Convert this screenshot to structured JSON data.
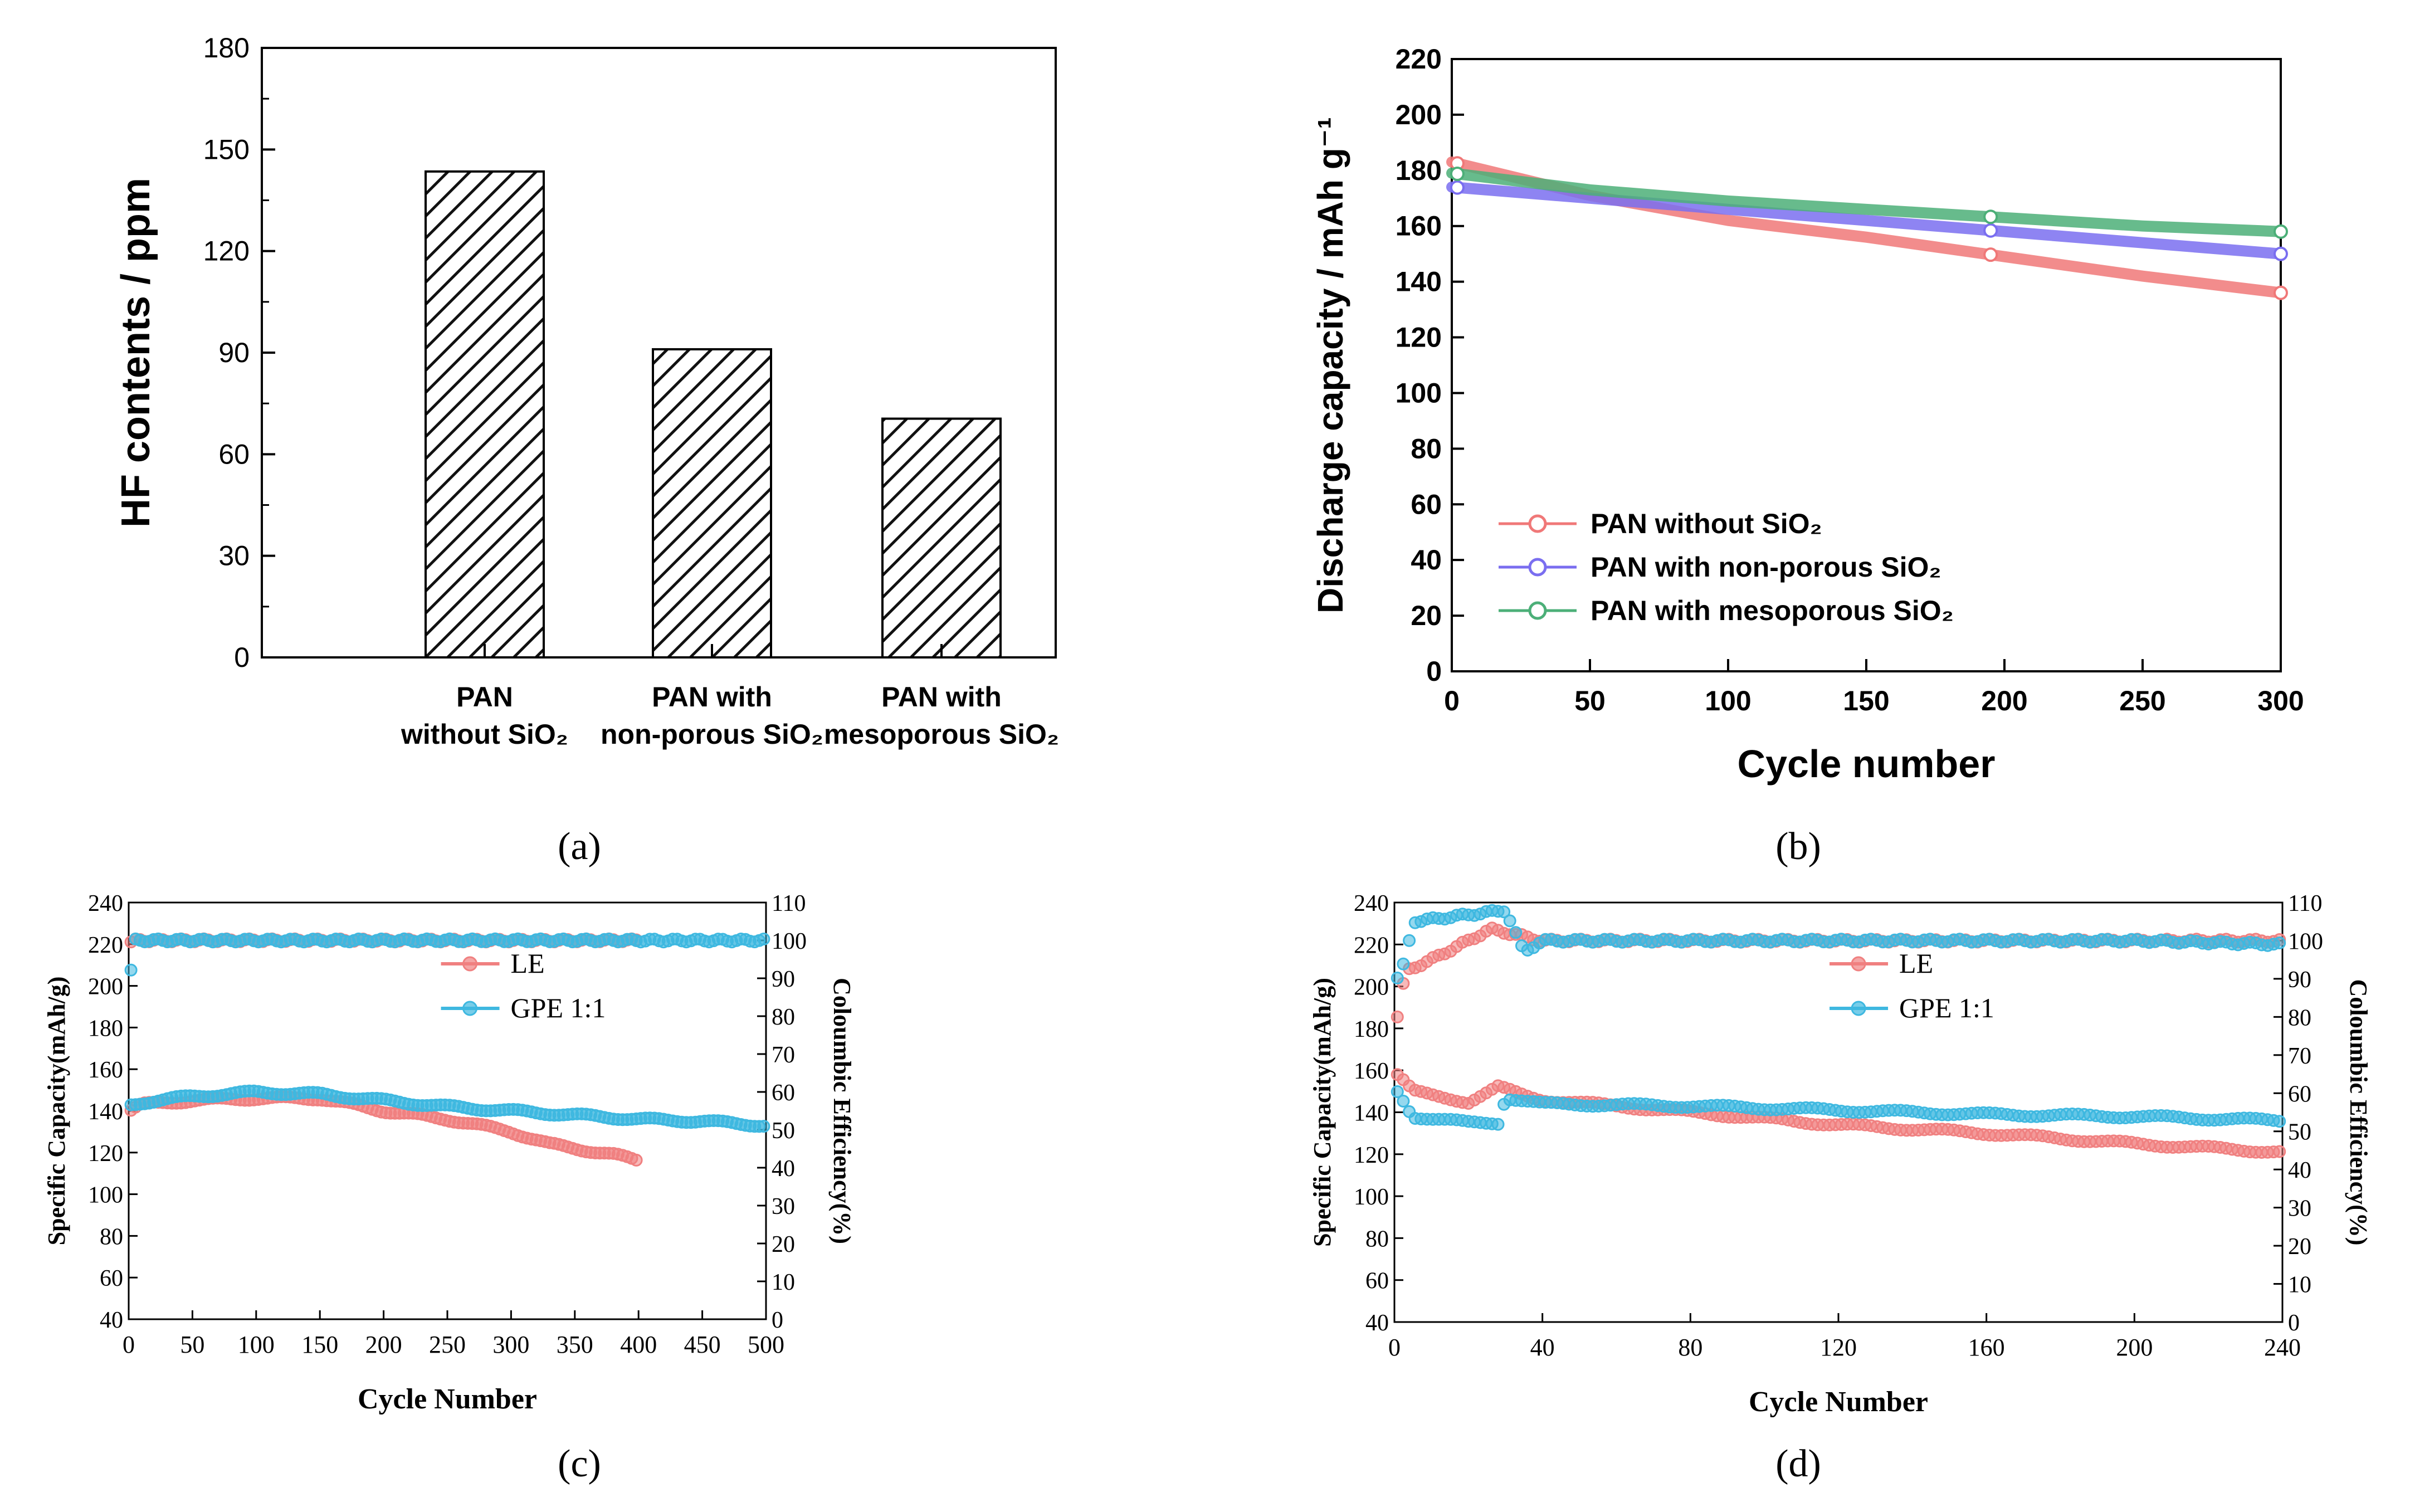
{
  "chart_data": [
    {
      "type": "bar",
      "panel_label": "(a)",
      "categories": [
        [
          "PAN",
          "without SiO₂"
        ],
        [
          "PAN with",
          "non-porous SiO₂"
        ],
        [
          "PAN with",
          "mesoporous SiO₂"
        ]
      ],
      "values": [
        143.5,
        91,
        70.5
      ],
      "ylabel": "HF contents / ppm",
      "ylim": [
        0,
        180
      ],
      "yticks": [
        0,
        30,
        60,
        90,
        120,
        150,
        180
      ],
      "pattern": "diagonal-hatch",
      "bar_color": "#111111"
    },
    {
      "type": "line",
      "panel_label": "(b)",
      "xlabel": "Cycle number",
      "ylabel": "Discharge capacity / mAh g⁻¹",
      "xlim": [
        0,
        300
      ],
      "ylim": [
        0,
        220
      ],
      "xticks": [
        0,
        50,
        100,
        150,
        200,
        250,
        300
      ],
      "yticks": [
        0,
        20,
        40,
        60,
        80,
        100,
        120,
        140,
        160,
        180,
        200,
        220
      ],
      "legend_position": "lower-left",
      "series": [
        {
          "name": "PAN without SiO₂",
          "color": "#f07878",
          "x": [
            0,
            50,
            100,
            150,
            200,
            250,
            300
          ],
          "y": [
            183,
            171,
            162,
            156,
            149,
            142,
            136
          ]
        },
        {
          "name": "PAN with non-porous SiO₂",
          "color": "#7a6ef0",
          "x": [
            0,
            50,
            100,
            150,
            200,
            250,
            300
          ],
          "y": [
            174,
            170,
            166,
            162,
            158,
            154,
            150
          ]
        },
        {
          "name": "PAN with mesoporous SiO₂",
          "color": "#4caf78",
          "x": [
            0,
            50,
            100,
            150,
            200,
            250,
            300
          ],
          "y": [
            179,
            173,
            169,
            166,
            163,
            160,
            158
          ]
        }
      ]
    },
    {
      "type": "scatter",
      "panel_label": "(c)",
      "xlabel": "Cycle Number",
      "ylabel": "Specific Capacity(mAh/g)",
      "y2label": "Coloumbic Efficiency(%)",
      "xlim": [
        0,
        500
      ],
      "ylim": [
        40,
        240
      ],
      "y2lim": [
        0,
        110
      ],
      "xticks": [
        0,
        50,
        100,
        150,
        200,
        250,
        300,
        350,
        400,
        450,
        500
      ],
      "yticks": [
        40,
        60,
        80,
        100,
        120,
        140,
        160,
        180,
        200,
        220,
        240
      ],
      "y2ticks": [
        0,
        10,
        20,
        30,
        40,
        50,
        60,
        70,
        80,
        90,
        100,
        110
      ],
      "legend_position": "upper-center",
      "series": [
        {
          "name": "LE",
          "color": "#f08080",
          "capacity": {
            "x": [
              1,
              10,
              50,
              100,
              150,
              200,
              250,
              300,
              330,
              360,
              380,
              400
            ],
            "y": [
              140,
              143,
              145,
              146,
              146,
              140,
              136,
              130,
              124,
              121,
              119,
              116
            ]
          },
          "efficiency": {
            "x": [
              1,
              5,
              50,
              100,
              150,
              200,
              250,
              300,
              350,
              400
            ],
            "y": [
              99.5,
              100,
              100,
              100,
              100,
              100,
              100,
              100,
              100,
              100
            ]
          }
        },
        {
          "name": "GPE 1:1",
          "color": "#3eb8e0",
          "capacity": {
            "x": [
              1,
              10,
              50,
              100,
              150,
              200,
              250,
              300,
              350,
              400,
              450,
              500
            ],
            "y": [
              143,
              144,
              147,
              149,
              148,
              145,
              142,
              140,
              138,
              136,
              135,
              133
            ]
          },
          "efficiency": {
            "x": [
              1,
              5,
              50,
              100,
              150,
              200,
              250,
              300,
              350,
              400,
              450,
              500
            ],
            "y": [
              90,
              100,
              100,
              100,
              100,
              100,
              100,
              100,
              100,
              100,
              100,
              100
            ]
          }
        }
      ]
    },
    {
      "type": "scatter",
      "panel_label": "(d)",
      "xlabel": "Cycle Number",
      "ylabel": "Specific Capacity(mAh/g)",
      "y2label": "Coloumbic Efficiency(%)",
      "xlim": [
        0,
        240
      ],
      "ylim": [
        40,
        240
      ],
      "y2lim": [
        0,
        110
      ],
      "xticks": [
        0,
        40,
        80,
        120,
        160,
        200,
        240
      ],
      "yticks": [
        40,
        60,
        80,
        100,
        120,
        140,
        160,
        180,
        200,
        220,
        240
      ],
      "y2ticks": [
        0,
        10,
        20,
        30,
        40,
        50,
        60,
        70,
        80,
        90,
        100,
        110
      ],
      "legend_position": "upper-center",
      "series": [
        {
          "name": "LE",
          "color": "#f08080",
          "capacity": {
            "x": [
              1,
              5,
              10,
              20,
              28,
              35,
              40,
              80,
              120,
              160,
              200,
              240
            ],
            "y": [
              158,
              150,
              148,
              145,
              152,
              148,
              146,
              140,
              134,
              130,
              125,
              121
            ]
          },
          "efficiency": {
            "x": [
              1,
              3,
              10,
              26,
              40,
              80,
              120,
              160,
              200,
              240
            ],
            "y": [
              80,
              92,
              95,
              103,
              100,
              100,
              100,
              100,
              100,
              100
            ]
          }
        },
        {
          "name": "GPE 1:1",
          "color": "#3eb8e0",
          "capacity": {
            "x": [
              1,
              5,
              10,
              20,
              28,
              30,
              40,
              80,
              120,
              160,
              200,
              240
            ],
            "y": [
              150,
              138,
              137,
              135,
              135,
              147,
              144,
              143,
              141,
              139,
              138,
              136
            ]
          },
          "efficiency": {
            "x": [
              1,
              3,
              5,
              30,
              35,
              40,
              80,
              120,
              160,
              200,
              240
            ],
            "y": [
              90,
              95,
              105,
              108,
              97,
              100,
              100,
              100,
              100,
              100,
              99
            ]
          }
        }
      ]
    }
  ]
}
